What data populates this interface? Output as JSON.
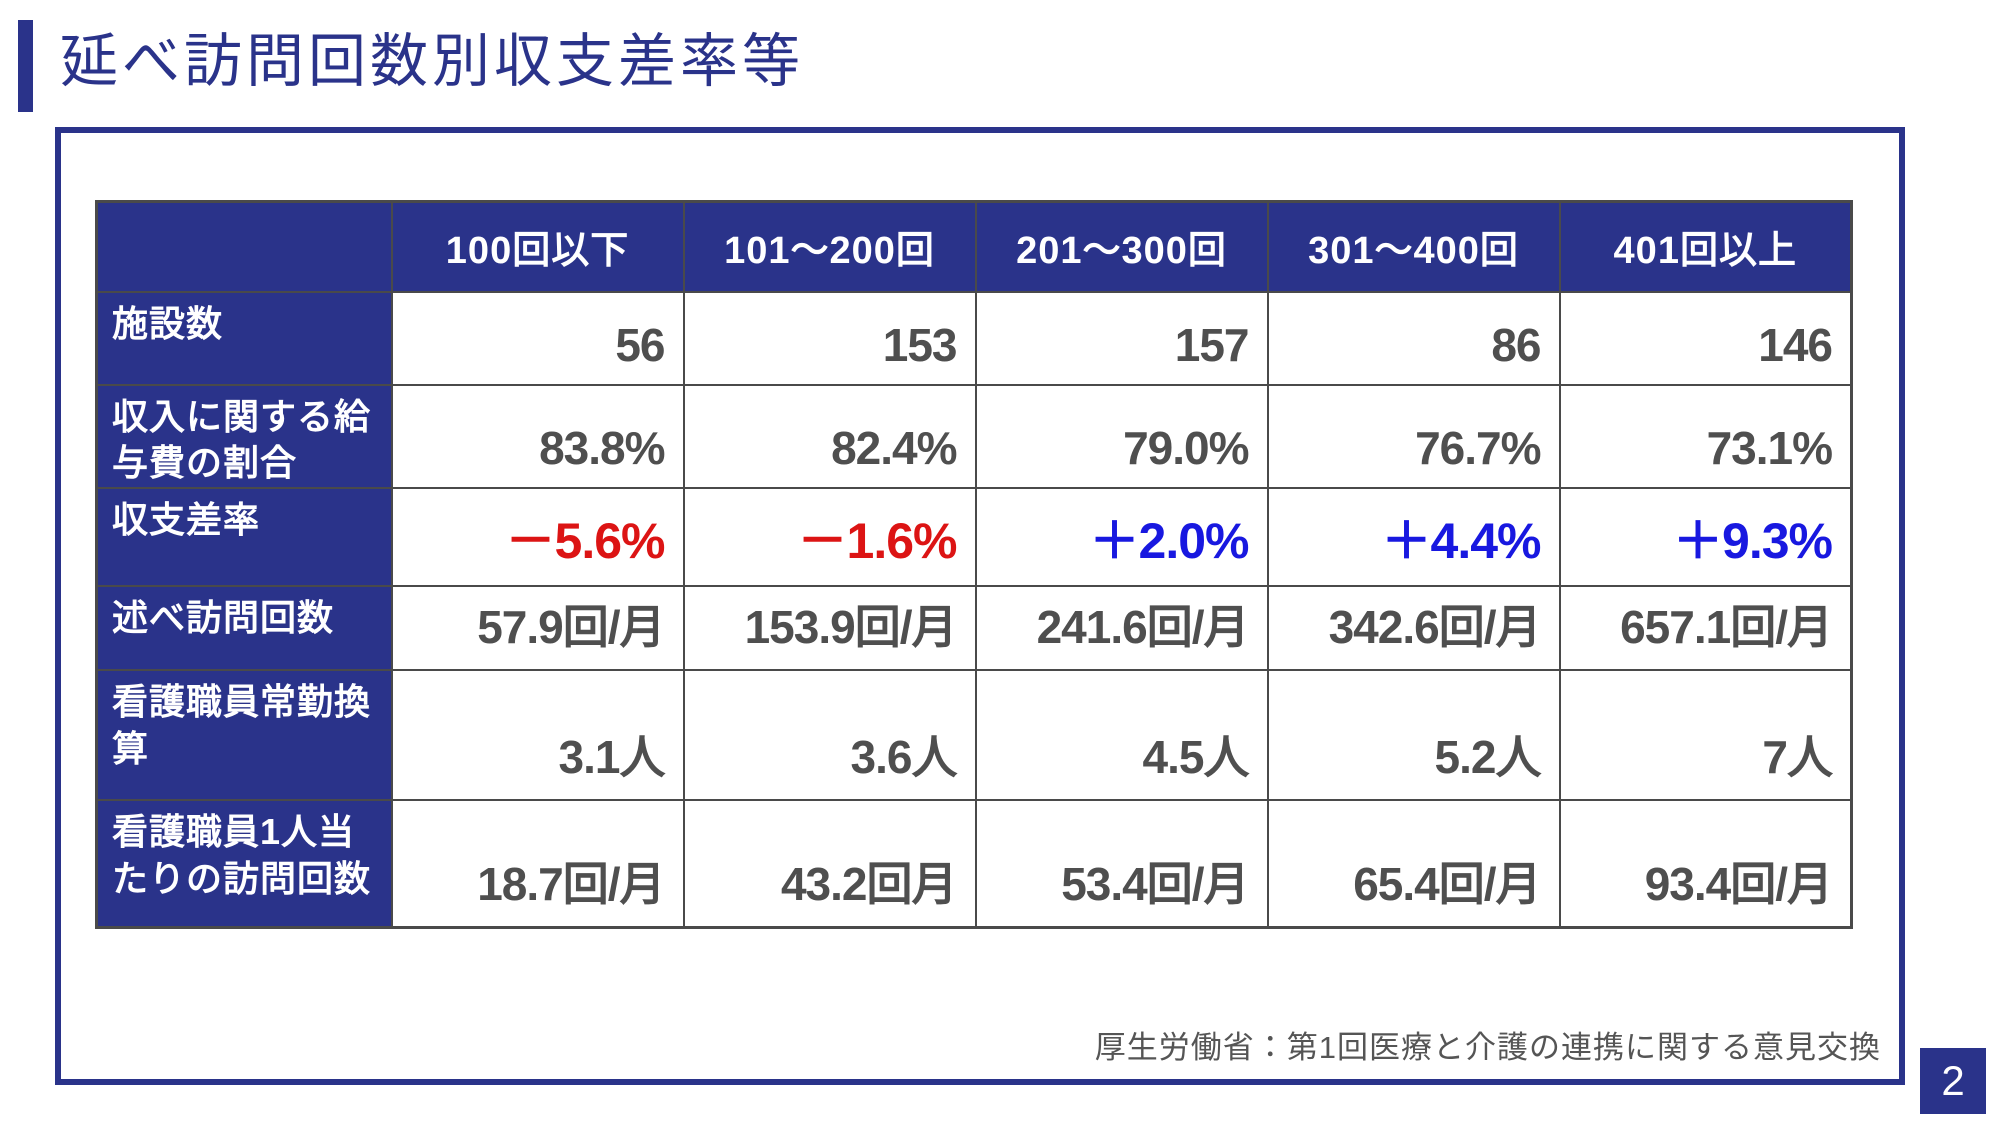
{
  "title": "延べ訪問回数別収支差率等",
  "colors": {
    "accent_navy": "#2A338A",
    "negative_red": "#DC1414",
    "positive_blue": "#1818E0",
    "value_gray": "#4F4F4F"
  },
  "table": {
    "col_headers": [
      "100回以下",
      "101～200回",
      "201～300回",
      "301～400回",
      "401回以上"
    ],
    "rows": [
      {
        "label": "施設数",
        "values": [
          "56",
          "153",
          "157",
          "86",
          "146"
        ]
      },
      {
        "label": "収入に関する給与費の割合",
        "values": [
          "83.8%",
          "82.4%",
          "79.0%",
          "76.7%",
          "73.1%"
        ]
      },
      {
        "label": "収支差率",
        "values": [
          "－5.6%",
          "－1.6%",
          "＋2.0%",
          "＋4.4%",
          "＋9.3%"
        ],
        "value_colors": [
          "negative",
          "negative",
          "positive",
          "positive",
          "positive"
        ],
        "emphasized": true
      },
      {
        "label": "述べ訪問回数",
        "values": [
          "57.9回/月",
          "153.9回/月",
          "241.6回/月",
          "342.6回/月",
          "657.1回/月"
        ]
      },
      {
        "label": "看護職員常勤換算",
        "values": [
          "3.1人",
          "3.6人",
          "4.5人",
          "5.2人",
          "7人"
        ]
      },
      {
        "label": "看護職員1人当たりの訪問回数",
        "values": [
          "18.7回/月",
          "43.2回月",
          "53.4回/月",
          "65.4回/月",
          "93.4回/月"
        ]
      }
    ]
  },
  "source": "厚生労働省：第1回医療と介護の連携に関する意見交換",
  "page_number": "2"
}
